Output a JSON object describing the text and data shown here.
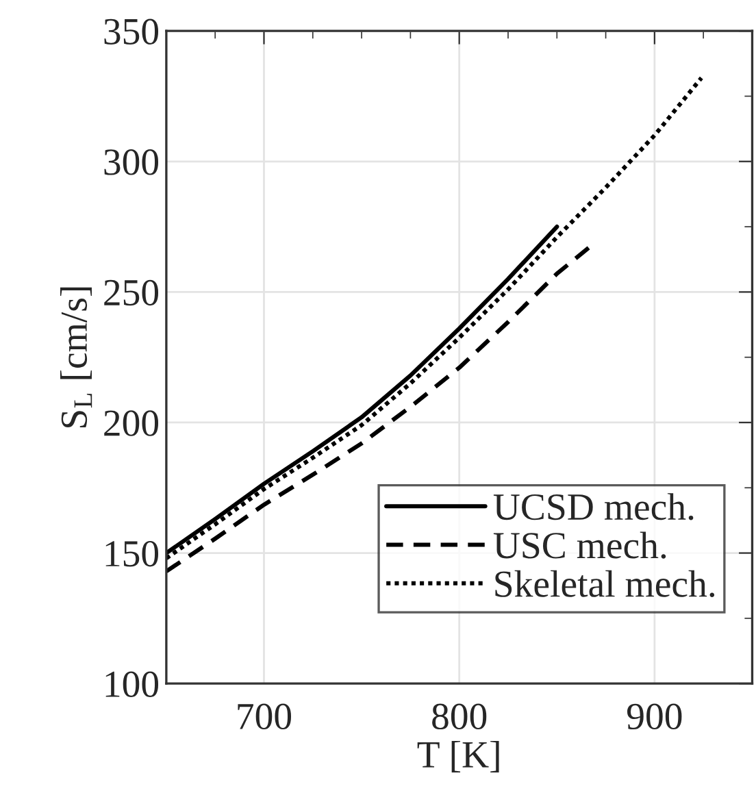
{
  "chart_data": {
    "type": "line",
    "xlabel": "T [K]",
    "ylabel": "S$_{L}$ [cm/s]",
    "xlim": [
      650,
      950
    ],
    "xticks": [
      700,
      800,
      900
    ],
    "ylim": [
      100,
      350
    ],
    "yticks": [
      100,
      150,
      200,
      250,
      300,
      350
    ],
    "grid": true,
    "legend": "bottom right",
    "series": [
      {
        "name": "UCSD mech.",
        "color": "#000000",
        "line_style": "solid",
        "x": [
          650,
          675,
          700,
          725,
          750,
          775,
          800,
          825,
          850
        ],
        "values": [
          150,
          163,
          176.5,
          189,
          202,
          218,
          236,
          255,
          275
        ]
      },
      {
        "name": "USC mech.",
        "color": "#000000",
        "line_style": "dashed",
        "x": [
          650,
          675,
          700,
          725,
          750,
          775,
          800,
          825,
          850,
          868
        ],
        "values": [
          143,
          155.5,
          168.5,
          180,
          192,
          206,
          221,
          238.5,
          257,
          268
        ]
      },
      {
        "name": "Skeletal mech.",
        "color": "#000000",
        "line_style": "dotted",
        "x": [
          650,
          675,
          700,
          725,
          750,
          775,
          800,
          825,
          850,
          875,
          900,
          924
        ],
        "values": [
          148,
          161,
          174.5,
          186.5,
          199,
          215,
          232.5,
          251,
          271,
          290,
          310,
          332
        ]
      }
    ]
  }
}
